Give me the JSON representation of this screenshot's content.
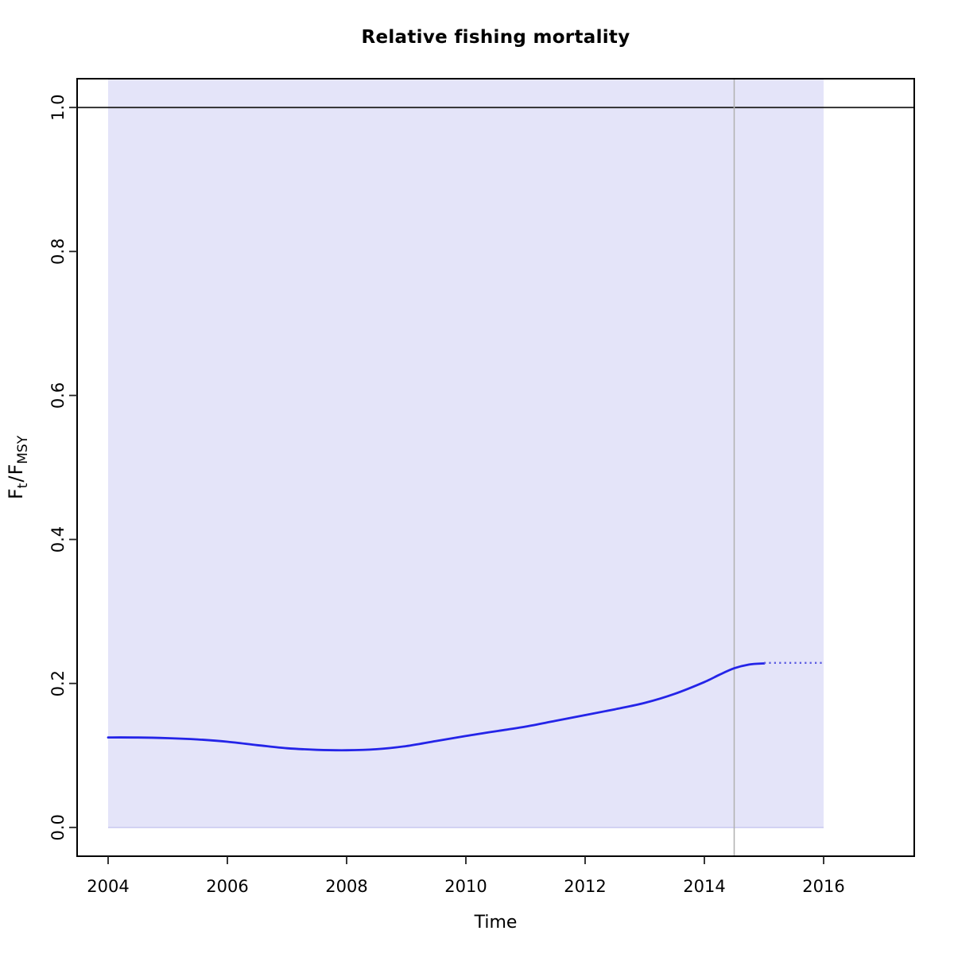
{
  "chart_data": {
    "type": "line",
    "title": "Relative fishing mortality",
    "xlabel": "Time",
    "ylabel": "F[t]/F[MSY]",
    "ylabel_parts": {
      "base1": "F",
      "sub1": "t",
      "sep": "/",
      "base2": "F",
      "sub2": "MSY"
    },
    "x_ticks": [
      2004,
      2006,
      2008,
      2010,
      2012,
      2014,
      2016
    ],
    "y_ticks": [
      "0.0",
      "0.2",
      "0.4",
      "0.6",
      "0.8",
      "1.0"
    ],
    "y_tick_values": [
      0.0,
      0.2,
      0.4,
      0.6,
      0.8,
      1.0
    ],
    "xlim": [
      2003.48,
      2017.52
    ],
    "ylim": [
      -0.04,
      1.04
    ],
    "grid": false,
    "legend": null,
    "series": [
      {
        "name": "relative-fishing-mortality-estimate",
        "style": "solid",
        "color": "#2424e8",
        "x": [
          2004,
          2004.5,
          2005,
          2005.5,
          2006,
          2006.5,
          2007,
          2007.5,
          2008,
          2008.5,
          2009,
          2009.5,
          2010,
          2010.5,
          2011,
          2011.5,
          2012,
          2012.5,
          2013,
          2013.5,
          2014,
          2014.25,
          2014.5,
          2014.75,
          2015
        ],
        "y": [
          0.125,
          0.1249,
          0.124,
          0.1222,
          0.119,
          0.1143,
          0.11,
          0.1078,
          0.1072,
          0.1086,
          0.113,
          0.12,
          0.127,
          0.1335,
          0.14,
          0.148,
          0.156,
          0.1641,
          0.173,
          0.1855,
          0.202,
          0.212,
          0.221,
          0.2262,
          0.2278
        ]
      },
      {
        "name": "relative-fishing-mortality-forecast",
        "style": "dotted",
        "color": "#5a5ae2",
        "x": [
          2015,
          2016
        ],
        "y": [
          0.2285,
          0.2285
        ]
      }
    ],
    "annotations": {
      "reference_line": {
        "y": 1.0,
        "color": "#1a1a1a"
      },
      "vertical_line": {
        "x": 2014.5,
        "color": "#b0b0b0"
      },
      "confidence_band": {
        "x_start": 2004,
        "x_end": 2016,
        "y_low": 0.0,
        "y_high": null,
        "clipped_at_top": true,
        "fill_color": "#e4e4f9",
        "edge_color": "#cacaf0"
      }
    }
  }
}
